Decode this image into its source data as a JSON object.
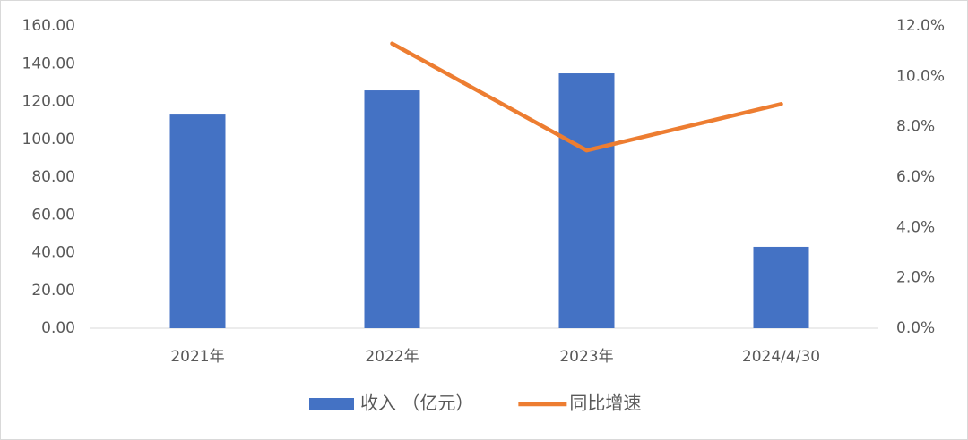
{
  "chart_data": {
    "type": "bar-line",
    "categories": [
      "2021年",
      "2022年",
      "2023年",
      "2024/4/30"
    ],
    "series": [
      {
        "name": "收入 （亿元）",
        "type": "bar",
        "color": "#4472c4",
        "values": [
          113.1,
          125.9,
          134.9,
          43.1
        ]
      },
      {
        "name": "同比增速",
        "type": "line",
        "color": "#ed7d31",
        "axis": "y2",
        "values": [
          null,
          11.3,
          7.06,
          8.9
        ]
      }
    ],
    "ylim": [
      0,
      160
    ],
    "yticks": [
      {
        "value": 0,
        "label": "0.00"
      },
      {
        "value": 20,
        "label": "20.00"
      },
      {
        "value": 40,
        "label": "40.00"
      },
      {
        "value": 60,
        "label": "60.00"
      },
      {
        "value": 80,
        "label": "80.00"
      },
      {
        "value": 100,
        "label": "100.00"
      },
      {
        "value": 120,
        "label": "120.00"
      },
      {
        "value": 140,
        "label": "140.00"
      },
      {
        "value": 160,
        "label": "160.00"
      }
    ],
    "y2lim": [
      0,
      12
    ],
    "y2ticks": [
      {
        "value": 0,
        "label": "0.0%"
      },
      {
        "value": 2,
        "label": "2.0%"
      },
      {
        "value": 4,
        "label": "4.0%"
      },
      {
        "value": 6,
        "label": "6.0%"
      },
      {
        "value": 8,
        "label": "8.0%"
      },
      {
        "value": 10,
        "label": "10.0%"
      },
      {
        "value": 12,
        "label": "12.0%"
      }
    ],
    "grid": false,
    "legend": "bottom"
  }
}
